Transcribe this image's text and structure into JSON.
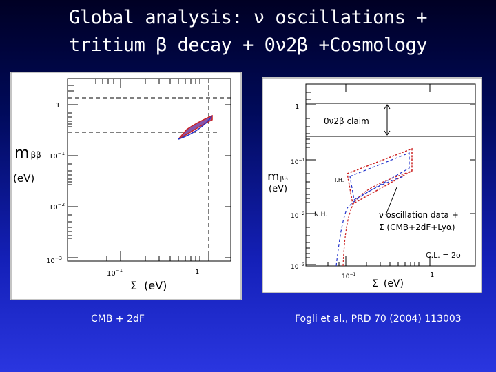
{
  "slide": {
    "title_line1": "Global analysis: ν oscillations  +",
    "title_line2": "tritium β decay + 0ν2β +Cosmology",
    "caption_left": "CMB + 2dF",
    "caption_right": "Fogli et al., PRD 70 (2004) 113003"
  },
  "left_plot": {
    "ylabel_symbol": "m",
    "ylabel_sub": "ββ",
    "ylabel_unit": "(eV)",
    "xlabel_symbol": "Σ",
    "xlabel_unit": "(eV)",
    "ytick_1": "1",
    "ytick_2": "10",
    "ytick_2_exp": "−1",
    "ytick_3": "10",
    "ytick_3_exp": "−2",
    "ytick_4": "10",
    "ytick_4_exp": "−3",
    "xtick_1": "10",
    "xtick_1_exp": "−1",
    "xtick_2": "1"
  },
  "right_plot": {
    "ylabel_symbol": "m",
    "ylabel_sub": "ββ",
    "ylabel_unit": "(eV)",
    "xlabel_symbol": "Σ",
    "xlabel_unit": "(eV)",
    "ytick_1": "1",
    "ytick_2": "10",
    "ytick_2_exp": "−1",
    "ytick_3": "10",
    "ytick_3_exp": "−2",
    "ytick_4": "10",
    "ytick_4_exp": "−3",
    "xtick_1": "10",
    "xtick_1_exp": "−1",
    "xtick_2": "1",
    "claim_label": "0ν2β  claim",
    "ih_label": "I.H.",
    "nh_label": "N.H.",
    "osc_label_1": "ν oscillation data +",
    "osc_label_2": "Σ (CMB+2dF+Lyα)",
    "cl_label": "C.L. = 2σ"
  },
  "colors": {
    "contour_red": "#cc2222",
    "contour_blue": "#2233cc",
    "fill_purple": "#8855aa"
  }
}
